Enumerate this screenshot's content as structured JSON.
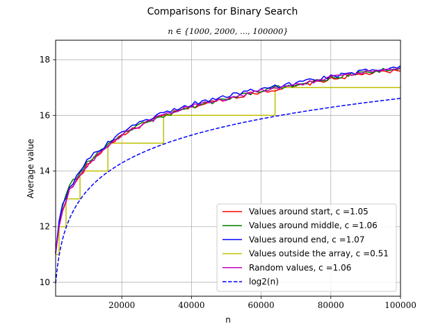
{
  "chart_data": {
    "type": "line",
    "title": "Comparisons for Binary Search",
    "subtitle": "n ∈ {1000, 2000, ..., 100000}",
    "xlabel": "n",
    "ylabel": "Average value",
    "xlim": [
      1000,
      100000
    ],
    "ylim": [
      9.5,
      18.7
    ],
    "xticks": [
      20000,
      40000,
      60000,
      80000,
      100000
    ],
    "xtick_labels": [
      "20000",
      "40000",
      "60000",
      "80000",
      "100000"
    ],
    "yticks": [
      10,
      12,
      14,
      16,
      18
    ],
    "ytick_labels": [
      "10",
      "12",
      "14",
      "16",
      "18"
    ],
    "grid": true,
    "legend_position": "lower-right",
    "series": [
      {
        "name": "Values around start, c =1.05",
        "color": "#ff0000",
        "style": "solid",
        "kind": "noisy_log",
        "c": 1.05,
        "x": [
          1000,
          2000,
          3000,
          5000,
          8000,
          10000,
          15000,
          20000,
          25000,
          30000,
          40000,
          50000,
          60000,
          70000,
          80000,
          90000,
          100000
        ],
        "y": [
          11.0,
          12.0,
          12.6,
          13.3,
          13.8,
          14.2,
          14.8,
          15.3,
          15.6,
          15.9,
          16.3,
          16.6,
          16.85,
          17.05,
          17.3,
          17.5,
          17.6
        ]
      },
      {
        "name": "Values around middle, c =1.06",
        "color": "#008000",
        "style": "solid",
        "kind": "noisy_log",
        "c": 1.06,
        "x": [
          1000,
          2000,
          3000,
          5000,
          8000,
          10000,
          15000,
          20000,
          25000,
          30000,
          40000,
          50000,
          60000,
          70000,
          80000,
          90000,
          100000
        ],
        "y": [
          11.1,
          12.1,
          12.7,
          13.5,
          13.9,
          14.3,
          14.85,
          15.3,
          15.65,
          15.9,
          16.3,
          16.6,
          16.9,
          17.1,
          17.35,
          17.55,
          17.7
        ]
      },
      {
        "name": "Values around end, c =1.07",
        "color": "#0000ff",
        "style": "solid",
        "kind": "noisy_log",
        "c": 1.07,
        "x": [
          1000,
          2000,
          3000,
          5000,
          8000,
          10000,
          15000,
          20000,
          25000,
          30000,
          40000,
          50000,
          60000,
          70000,
          80000,
          90000,
          100000
        ],
        "y": [
          11.1,
          12.2,
          12.8,
          13.4,
          14.0,
          14.4,
          14.9,
          15.4,
          15.7,
          16.0,
          16.4,
          16.7,
          16.95,
          17.15,
          17.4,
          17.6,
          17.75
        ]
      },
      {
        "name": "Values outside the array, c =0.51",
        "color": "#bfbf00",
        "style": "solid",
        "kind": "step",
        "c": 0.51,
        "x": [
          1000,
          2000,
          4000,
          8000,
          16000,
          32000,
          64000,
          100000
        ],
        "y": [
          11,
          12,
          13,
          14,
          15,
          16,
          17,
          17
        ]
      },
      {
        "name": "Random values, c =1.06",
        "color": "#bf00bf",
        "style": "solid",
        "kind": "noisy_log",
        "c": 1.06,
        "x": [
          1000,
          2000,
          3000,
          5000,
          8000,
          10000,
          15000,
          20000,
          25000,
          30000,
          40000,
          50000,
          60000,
          70000,
          80000,
          90000,
          100000
        ],
        "y": [
          11.0,
          12.0,
          12.6,
          13.3,
          13.9,
          14.2,
          14.8,
          15.3,
          15.6,
          15.9,
          16.35,
          16.6,
          16.9,
          17.1,
          17.35,
          17.55,
          17.7
        ]
      },
      {
        "name": "log2(n)",
        "color": "#0000ff",
        "style": "dashed",
        "kind": "log2",
        "x": [
          1000,
          2000,
          5000,
          10000,
          20000,
          40000,
          60000,
          80000,
          100000
        ],
        "y": [
          9.97,
          10.97,
          12.29,
          13.29,
          14.29,
          15.29,
          15.87,
          16.29,
          16.61
        ]
      }
    ]
  }
}
